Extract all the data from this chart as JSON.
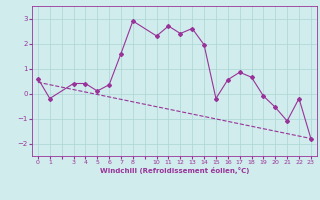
{
  "xlabel": "Windchill (Refroidissement éolien,°C)",
  "x_hours": [
    0,
    1,
    3,
    4,
    5,
    6,
    7,
    8,
    10,
    11,
    12,
    13,
    14,
    15,
    16,
    17,
    18,
    19,
    20,
    21,
    22,
    23
  ],
  "y_data": [
    0.6,
    -0.2,
    0.4,
    0.4,
    0.1,
    0.35,
    1.6,
    2.9,
    2.3,
    2.7,
    2.4,
    2.6,
    1.95,
    -0.2,
    0.55,
    0.85,
    0.65,
    -0.1,
    -0.55,
    -1.1,
    -0.2,
    -1.8
  ],
  "trend_x": [
    0,
    23
  ],
  "trend_y": [
    0.45,
    -1.8
  ],
  "line_color": "#993399",
  "bg_color": "#d0ecec",
  "grid_color": "#b0d8d8",
  "ylim": [
    -2.5,
    3.5
  ],
  "yticks": [
    -2,
    -1,
    0,
    1,
    2,
    3
  ],
  "x_tick_labels": [
    "0",
    "1",
    "",
    "3",
    "4",
    "5",
    "6",
    "7",
    "8",
    "",
    "10",
    "11",
    "12",
    "13",
    "14",
    "15",
    "16",
    "17",
    "18",
    "19",
    "20",
    "21",
    "22",
    "23"
  ],
  "x_tick_positions": [
    0,
    1,
    2,
    3,
    4,
    5,
    6,
    7,
    8,
    9,
    10,
    11,
    12,
    13,
    14,
    15,
    16,
    17,
    18,
    19,
    20,
    21,
    22,
    23
  ]
}
